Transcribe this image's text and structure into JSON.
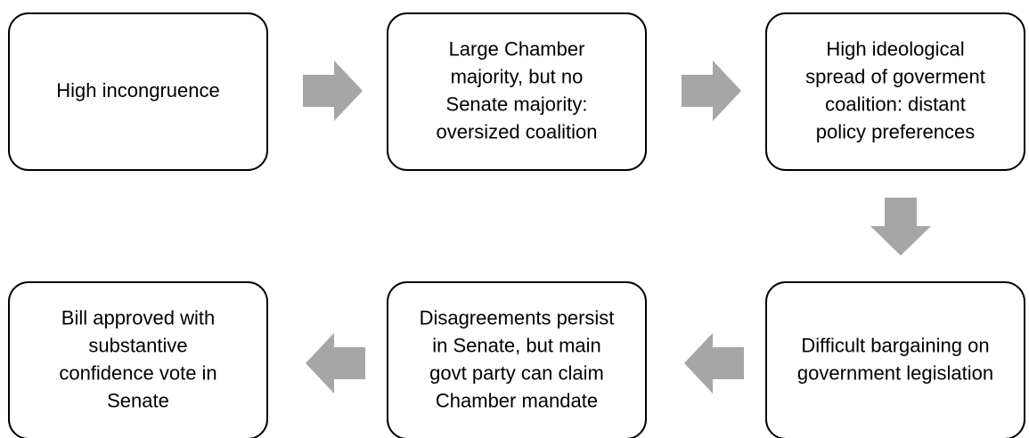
{
  "nodes": [
    {
      "lines": [
        "High incongruence"
      ]
    },
    {
      "lines": [
        "Large Chamber",
        "majority, but no",
        "Senate majority:",
        "oversized coalition"
      ]
    },
    {
      "lines": [
        "High ideological",
        "spread of goverment",
        "coalition: distant",
        "policy preferences"
      ]
    },
    {
      "lines": [
        "Difficult bargaining on",
        "government legislation"
      ]
    },
    {
      "lines": [
        "Disagreements persist",
        "in Senate, but main",
        "govt party can claim",
        "Chamber mandate"
      ]
    },
    {
      "lines": [
        "Bill approved with",
        "substantive",
        "confidence vote in",
        "Senate"
      ]
    }
  ]
}
